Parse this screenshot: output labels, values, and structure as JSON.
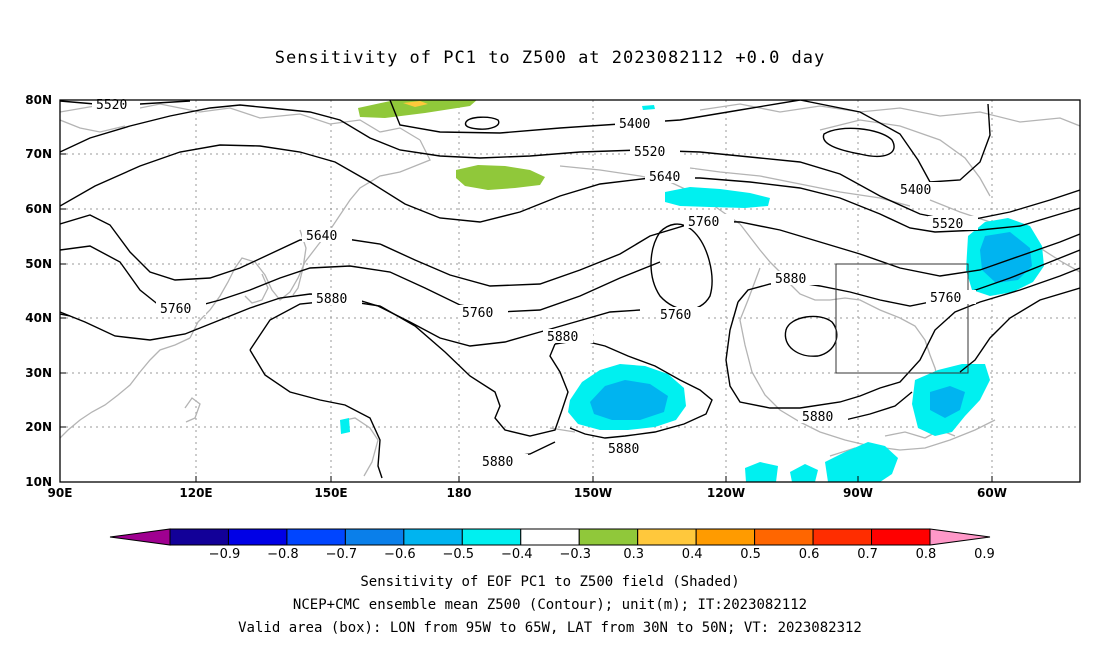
{
  "title": "Sensitivity of PC1 to Z500 at 2023082112 +0.0 day",
  "lat_ticks": [
    "80N",
    "70N",
    "60N",
    "50N",
    "40N",
    "30N",
    "20N",
    "10N"
  ],
  "lon_ticks": [
    "90E",
    "120E",
    "150E",
    "180",
    "150W",
    "120W",
    "90W",
    "60W"
  ],
  "contour_labels": {
    "c5520_a": "5520",
    "c5400_a": "5400",
    "c5520_b": "5520",
    "c5640_a": "5640",
    "c5400_b": "5400",
    "c5520_c": "5520",
    "c5760_a": "5760",
    "c5640_b": "5640",
    "c5880_a": "5880",
    "c5760_b": "5760",
    "c5760_c": "5760",
    "c5880_b": "5880",
    "c5760_d": "5760",
    "c5760_e": "5760",
    "c5880_c": "5880",
    "c5880_d": "5880",
    "c5880_e": "5880",
    "c5880_f": "5880"
  },
  "valid_box": {
    "lon_from": "95W",
    "lon_to": "65W",
    "lat_from": "30N",
    "lat_to": "50N"
  },
  "colorbar": {
    "colors": [
      "#9f0090",
      "#120098",
      "#0000e6",
      "#0045ff",
      "#0a7fea",
      "#00b4f0",
      "#00f0f0",
      "#ffffff",
      "#90c83a",
      "#ffc83c",
      "#ff9b00",
      "#ff6600",
      "#ff2d00",
      "#ff0000",
      "#ff98c8"
    ],
    "labels": [
      "-0.9",
      "-0.8",
      "-0.7",
      "-0.6",
      "-0.5",
      "-0.4",
      "-0.3",
      "0.3",
      "0.4",
      "0.5",
      "0.6",
      "0.7",
      "0.8",
      "0.9"
    ]
  },
  "captions": {
    "line1": "Sensitivity of EOF PC1 to Z500 field (Shaded)",
    "line2": "NCEP+CMC ensemble mean Z500 (Contour); unit(m); IT:2023082112",
    "line3": "Valid area (box): LON from 95W to 65W, LAT from 30N to 50N; VT: 2023082312"
  }
}
